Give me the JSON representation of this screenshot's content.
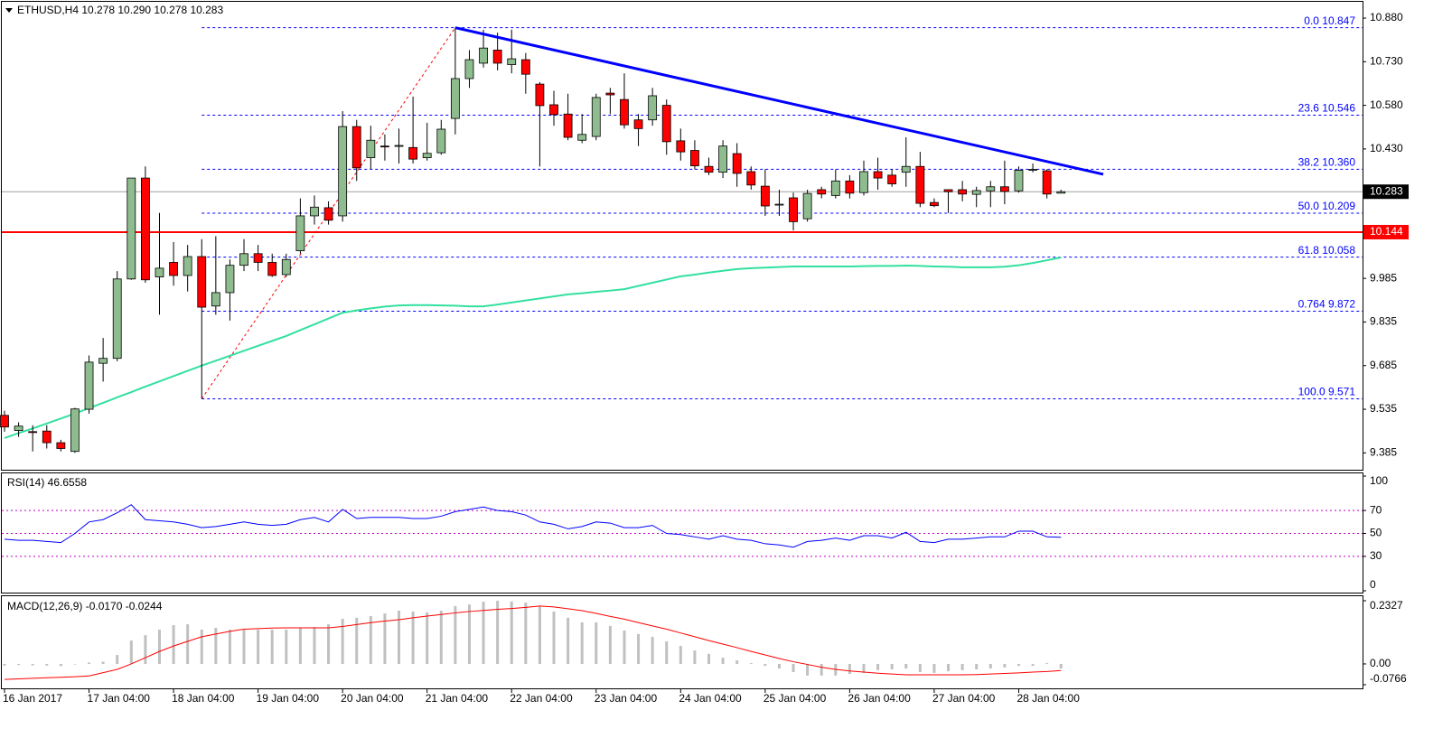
{
  "chart_data": [
    {
      "type": "candlestick",
      "title": "ETHUSD,H4 10.278 10.290 10.278 10.283",
      "categories": [
        "16 Jan 2017",
        null,
        null,
        null,
        null,
        null,
        "17 Jan 04:00",
        null,
        null,
        null,
        null,
        null,
        "18 Jan 04:00",
        null,
        null,
        null,
        null,
        null,
        "19 Jan 04:00",
        null,
        null,
        null,
        null,
        null,
        "20 Jan 04:00",
        null,
        null,
        null,
        null,
        null,
        "21 Jan 04:00",
        null,
        null,
        null,
        null,
        null,
        "22 Jan 04:00",
        null,
        null,
        null,
        null,
        null,
        "23 Jan 04:00",
        null,
        null,
        null,
        null,
        null,
        "24 Jan 04:00",
        null,
        null,
        null,
        null,
        null,
        "25 Jan 04:00",
        null,
        null,
        null,
        null,
        null,
        "26 Jan 04:00",
        null,
        null,
        null,
        null,
        null,
        "27 Jan 04:00",
        null,
        null,
        null,
        null,
        null,
        "28 Jan 04:00",
        null,
        null,
        null
      ],
      "open": [
        9.514,
        9.462,
        9.458,
        9.46,
        9.42,
        9.39,
        9.535,
        9.693,
        9.71,
        9.983,
        10.33,
        9.99,
        10.04,
        9.995,
        10.06,
        9.89,
        9.936,
        10.03,
        10.07,
        10.04,
        9.998,
        10.08,
        10.2,
        10.228,
        10.2,
        10.507,
        10.4,
        10.44,
        10.44,
        10.435,
        10.4,
        10.417,
        10.535,
        10.672,
        10.725,
        10.77,
        10.72,
        10.737,
        10.653,
        10.582,
        10.55,
        10.46,
        10.473,
        10.622,
        10.6,
        10.53,
        10.53,
        10.58,
        10.458,
        10.425,
        10.37,
        10.35,
        10.414,
        10.352,
        10.302,
        10.24,
        10.262,
        10.19,
        10.29,
        10.27,
        10.32,
        10.28,
        10.352,
        10.34,
        10.35,
        10.37,
        10.246,
        10.29,
        10.29,
        10.274,
        10.286,
        10.3,
        10.286,
        10.357,
        10.355,
        10.278
      ],
      "high": [
        9.53,
        9.49,
        9.48,
        9.48,
        9.43,
        9.54,
        9.72,
        9.78,
        10.01,
        10.33,
        10.37,
        10.21,
        10.11,
        10.1,
        10.12,
        10.13,
        10.05,
        10.12,
        10.1,
        10.07,
        10.07,
        10.26,
        10.27,
        10.25,
        10.56,
        10.53,
        10.51,
        10.48,
        10.5,
        10.61,
        10.52,
        10.53,
        10.847,
        10.77,
        10.84,
        10.83,
        10.84,
        10.76,
        10.66,
        10.63,
        10.62,
        10.55,
        10.62,
        10.64,
        10.69,
        10.55,
        10.64,
        10.6,
        10.5,
        10.46,
        10.4,
        10.46,
        10.45,
        10.37,
        10.36,
        10.29,
        10.28,
        10.29,
        10.3,
        10.36,
        10.34,
        10.39,
        10.4,
        10.36,
        10.47,
        10.42,
        10.26,
        10.29,
        10.32,
        10.3,
        10.32,
        10.39,
        10.37,
        10.38,
        10.36,
        10.29
      ],
      "low": [
        9.458,
        9.44,
        9.39,
        9.4,
        9.39,
        9.385,
        9.52,
        9.63,
        9.7,
        9.98,
        9.97,
        9.86,
        9.96,
        9.94,
        9.571,
        9.86,
        9.84,
        10.01,
        10.01,
        9.99,
        9.99,
        10.07,
        10.17,
        10.17,
        10.18,
        10.32,
        10.36,
        10.39,
        10.38,
        10.38,
        10.39,
        10.41,
        10.48,
        10.64,
        10.71,
        10.7,
        10.69,
        10.62,
        10.37,
        10.51,
        10.46,
        10.45,
        10.46,
        10.55,
        10.5,
        10.44,
        10.51,
        10.41,
        10.39,
        10.36,
        10.34,
        10.33,
        10.3,
        10.29,
        10.2,
        10.2,
        10.15,
        10.18,
        10.26,
        10.26,
        10.26,
        10.27,
        10.29,
        10.3,
        10.3,
        10.23,
        10.23,
        10.21,
        10.25,
        10.23,
        10.23,
        10.24,
        10.28,
        10.35,
        10.26,
        10.278
      ],
      "close": [
        9.474,
        9.477,
        9.455,
        9.42,
        9.4,
        9.536,
        9.697,
        9.71,
        9.983,
        10.33,
        9.98,
        10.02,
        9.995,
        10.06,
        9.886,
        9.936,
        10.03,
        10.07,
        10.04,
        9.995,
        10.05,
        10.2,
        10.23,
        10.185,
        10.507,
        10.365,
        10.46,
        10.438,
        10.442,
        10.395,
        10.415,
        10.498,
        10.672,
        10.737,
        10.777,
        10.725,
        10.74,
        10.687,
        10.579,
        10.548,
        10.47,
        10.48,
        10.607,
        10.616,
        10.513,
        10.5,
        10.613,
        10.455,
        10.42,
        10.372,
        10.35,
        10.44,
        10.346,
        10.306,
        10.234,
        10.24,
        10.18,
        10.277,
        10.275,
        10.32,
        10.278,
        10.352,
        10.33,
        10.31,
        10.37,
        10.243,
        10.235,
        10.283,
        10.275,
        10.287,
        10.3,
        10.284,
        10.357,
        10.36,
        10.275,
        10.283
      ],
      "up_color": "#8fbc8f",
      "down_color": "#ff0000",
      "ylim": [
        9.327,
        10.936
      ],
      "yticks": [
        {
          "value": 10.88,
          "label": "10.880"
        },
        {
          "value": 10.73,
          "label": "10.730"
        },
        {
          "value": 10.58,
          "label": "10.580"
        },
        {
          "value": 10.43,
          "label": "10.430"
        },
        9.985,
        9.835,
        9.685,
        9.535,
        9.385
      ],
      "moving_average": {
        "color": "#33e0a0",
        "values": [
          9.436,
          9.453,
          9.469,
          9.486,
          9.503,
          9.52,
          9.539,
          9.557,
          9.576,
          9.594,
          9.613,
          9.631,
          9.649,
          9.667,
          9.685,
          9.702,
          9.719,
          9.736,
          9.753,
          9.77,
          9.787,
          9.807,
          9.827,
          9.847,
          9.867,
          9.875,
          9.882,
          9.888,
          9.892,
          9.893,
          9.893,
          9.892,
          9.891,
          9.889,
          9.889,
          9.895,
          9.902,
          9.909,
          9.916,
          9.923,
          9.93,
          9.934,
          9.939,
          9.943,
          9.948,
          9.959,
          9.97,
          9.981,
          9.992,
          9.998,
          10.005,
          10.011,
          10.017,
          10.02,
          10.022,
          10.024,
          10.026,
          10.026,
          10.026,
          10.026,
          10.026,
          10.027,
          10.028,
          10.028,
          10.029,
          10.028,
          10.026,
          10.025,
          10.023,
          10.023,
          10.023,
          10.025,
          10.03,
          10.038,
          10.047,
          10.057
        ]
      },
      "fib_levels": [
        {
          "value": 10.847,
          "label": "0.0 10.847"
        },
        {
          "value": 10.546,
          "label": "23.6 10.546"
        },
        {
          "value": 10.36,
          "label": "38.2 10.360"
        },
        {
          "value": 10.209,
          "label": "50.0 10.209"
        },
        {
          "value": 10.058,
          "label": "61.8 10.058"
        },
        {
          "value": 9.872,
          "label": "0.764 9.872"
        },
        {
          "value": 9.571,
          "label": "100.0 9.571"
        }
      ],
      "fib_color": "#0000ff",
      "fib_anchor": {
        "x": [
          14,
          32
        ],
        "values": [
          9.571,
          10.847
        ],
        "color": "#ff0000"
      },
      "trendline": {
        "x": [
          32,
          78
        ],
        "values": [
          10.847,
          10.343
        ],
        "color": "#0000ff"
      },
      "current_price": 10.283,
      "support_line": {
        "value": 10.144,
        "color": "#ff0000"
      }
    },
    {
      "type": "line",
      "title": "RSI(14) 46.6558",
      "values": [
        45,
        44,
        44,
        43,
        42,
        50,
        60,
        62,
        68,
        75,
        62,
        61,
        60,
        58,
        55,
        56,
        58,
        60,
        58,
        57,
        58,
        62,
        64,
        60,
        71,
        63,
        64,
        64,
        64,
        63,
        63,
        65,
        69,
        71,
        73,
        70,
        69,
        66,
        60,
        58,
        54,
        56,
        60,
        59,
        55,
        55,
        57,
        50,
        49,
        47,
        45,
        48,
        45,
        44,
        41,
        40,
        38,
        43,
        44,
        46,
        44,
        48,
        48,
        46,
        51,
        43,
        42,
        45,
        45,
        46,
        47,
        47,
        52,
        52,
        47,
        46.6558
      ],
      "color": "#0000ff",
      "ylim": [
        0,
        100
      ],
      "yticks": [
        100,
        70,
        50,
        30,
        0
      ],
      "levels": [
        70,
        50,
        30
      ],
      "level_color": "#c000c0"
    },
    {
      "type": "bar",
      "title": "MACD(12,26,9) -0.0170 -0.0244",
      "values": [
        -0.006,
        -0.004,
        -0.005,
        -0.006,
        -0.008,
        -0.002,
        0.005,
        0.008,
        0.033,
        0.086,
        0.106,
        0.126,
        0.143,
        0.146,
        0.126,
        0.133,
        0.126,
        0.126,
        0.126,
        0.126,
        0.126,
        0.133,
        0.136,
        0.146,
        0.166,
        0.17,
        0.176,
        0.186,
        0.196,
        0.193,
        0.19,
        0.196,
        0.213,
        0.219,
        0.229,
        0.2327,
        0.23,
        0.226,
        0.213,
        0.193,
        0.17,
        0.153,
        0.153,
        0.14,
        0.123,
        0.11,
        0.1,
        0.083,
        0.066,
        0.05,
        0.037,
        0.023,
        0.013,
        0.003,
        -0.007,
        -0.017,
        -0.03,
        -0.043,
        -0.043,
        -0.043,
        -0.037,
        -0.033,
        -0.023,
        -0.02,
        -0.017,
        -0.03,
        -0.033,
        -0.027,
        -0.023,
        -0.02,
        -0.017,
        -0.013,
        -0.007,
        -0.007,
        0.003,
        -0.017
      ],
      "color": "#c0c0c0",
      "signal": {
        "color": "#ff0000",
        "values": [
          -0.057,
          -0.055,
          -0.053,
          -0.051,
          -0.049,
          -0.047,
          -0.044,
          -0.032,
          -0.02,
          0.0,
          0.023,
          0.046,
          0.066,
          0.083,
          0.1,
          0.11,
          0.12,
          0.128,
          0.13,
          0.132,
          0.133,
          0.133,
          0.133,
          0.133,
          0.138,
          0.145,
          0.152,
          0.158,
          0.163,
          0.17,
          0.176,
          0.182,
          0.188,
          0.193,
          0.197,
          0.201,
          0.204,
          0.208,
          0.213,
          0.21,
          0.203,
          0.196,
          0.186,
          0.175,
          0.165,
          0.152,
          0.14,
          0.128,
          0.114,
          0.1,
          0.086,
          0.073,
          0.06,
          0.046,
          0.033,
          0.02,
          0.008,
          -0.002,
          -0.012,
          -0.02,
          -0.026,
          -0.03,
          -0.034,
          -0.037,
          -0.04,
          -0.04,
          -0.04,
          -0.04,
          -0.04,
          -0.039,
          -0.037,
          -0.035,
          -0.033,
          -0.03,
          -0.028,
          -0.0244
        ]
      },
      "ylim": [
        -0.0766,
        0.2327
      ],
      "yticks": [
        0.2327,
        {
          "value": 0,
          "label": "0.00"
        },
        -0.0766
      ]
    }
  ]
}
